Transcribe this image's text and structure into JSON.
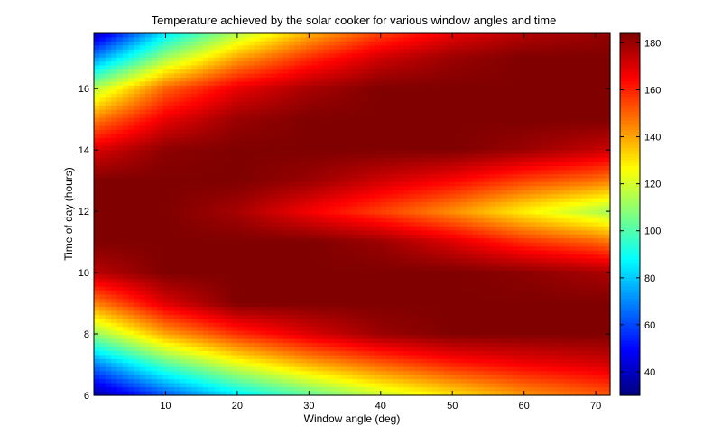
{
  "chart_data": {
    "type": "heatmap",
    "title": "Temperature achieved by the solar cooker for various window angles and time",
    "xlabel": "Window angle (deg)",
    "ylabel": "Time of day (hours)",
    "xlim": [
      0,
      72
    ],
    "ylim": [
      6,
      17.8
    ],
    "x_ticks": [
      10,
      20,
      30,
      40,
      50,
      60,
      70
    ],
    "y_ticks": [
      6,
      8,
      10,
      12,
      14,
      16
    ],
    "colorbar": {
      "colormap": "jet",
      "clim": [
        30,
        184
      ],
      "ticks": [
        40,
        60,
        80,
        100,
        120,
        140,
        160,
        180
      ],
      "location": "right"
    },
    "grid": false,
    "x": [
      0,
      10,
      20,
      30,
      40,
      50,
      60,
      70,
      72
    ],
    "y": [
      6,
      7,
      8,
      9,
      10,
      11,
      12,
      13,
      14,
      15,
      16,
      17,
      17.8
    ],
    "z": [
      [
        35,
        62,
        85,
        102,
        118,
        130,
        142,
        150,
        152
      ],
      [
        68,
        100,
        122,
        138,
        150,
        160,
        166,
        170,
        171
      ],
      [
        110,
        140,
        158,
        170,
        180,
        184,
        184,
        184,
        184
      ],
      [
        145,
        170,
        184,
        184,
        184,
        184,
        184,
        184,
        184
      ],
      [
        175,
        184,
        184,
        184,
        184,
        184,
        182,
        178,
        177
      ],
      [
        184,
        184,
        184,
        184,
        180,
        170,
        158,
        150,
        147
      ],
      [
        184,
        184,
        178,
        166,
        155,
        143,
        128,
        115,
        112
      ],
      [
        184,
        184,
        184,
        180,
        172,
        165,
        155,
        148,
        146
      ],
      [
        170,
        182,
        184,
        184,
        184,
        184,
        180,
        174,
        172
      ],
      [
        145,
        168,
        180,
        184,
        184,
        184,
        184,
        184,
        184
      ],
      [
        115,
        150,
        168,
        178,
        184,
        184,
        184,
        184,
        184
      ],
      [
        70,
        112,
        140,
        158,
        172,
        180,
        184,
        184,
        184
      ],
      [
        38,
        85,
        115,
        138,
        155,
        168,
        176,
        180,
        181
      ]
    ]
  }
}
